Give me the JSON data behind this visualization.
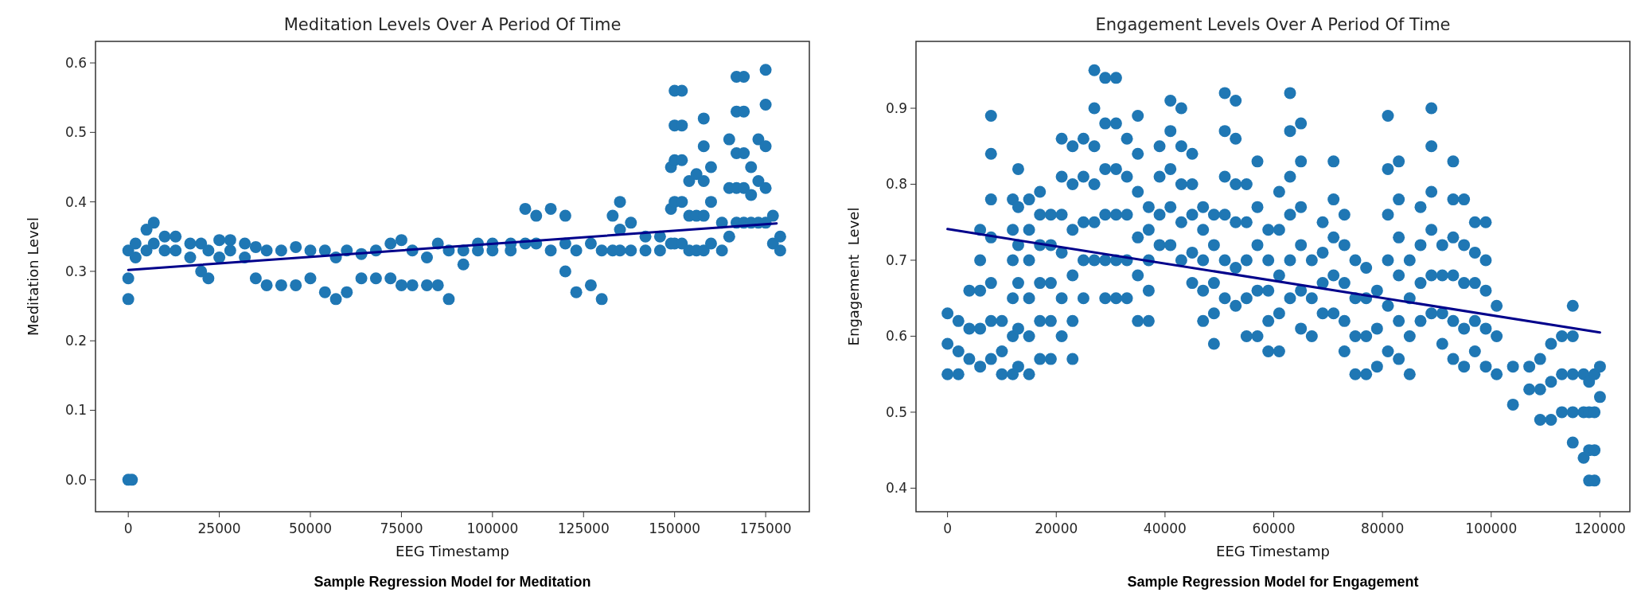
{
  "chart_data": [
    {
      "type": "scatter",
      "title": "Meditation Levels Over A Period Of Time",
      "xlabel": "EEG Timestamp",
      "ylabel": "Meditation Level",
      "annotations": [
        "Sample Regression Model for Meditation"
      ],
      "xlim": [
        -9000,
        187000
      ],
      "xticks": [
        0,
        25000,
        50000,
        75000,
        100000,
        125000,
        150000,
        175000
      ],
      "ylim": [
        -0.046,
        0.631
      ],
      "yticks": [
        {
          "value": 0,
          "label": "0.0"
        },
        0.1,
        0.2,
        0.3,
        0.4,
        0.5,
        0.6
      ],
      "series": [
        {
          "marker": "circle",
          "color": "#1f77b4",
          "x": [
            0,
            0,
            0,
            0,
            1000,
            2000,
            2000,
            5000,
            5000,
            7000,
            7000,
            10000,
            10000,
            13000,
            13000,
            17000,
            17000,
            20000,
            20000,
            22000,
            22000,
            25000,
            25000,
            28000,
            28000,
            32000,
            32000,
            35000,
            35000,
            38000,
            38000,
            42000,
            42000,
            46000,
            46000,
            50000,
            50000,
            54000,
            54000,
            57000,
            57000,
            60000,
            60000,
            64000,
            64000,
            68000,
            68000,
            72000,
            72000,
            75000,
            75000,
            78000,
            78000,
            82000,
            82000,
            85000,
            85000,
            88000,
            88000,
            92000,
            92000,
            96000,
            96000,
            100000,
            100000,
            105000,
            105000,
            109000,
            109000,
            112000,
            112000,
            116000,
            116000,
            120000,
            120000,
            120000,
            123000,
            123000,
            127000,
            127000,
            130000,
            130000,
            133000,
            133000,
            135000,
            135000,
            135000,
            138000,
            138000,
            142000,
            142000,
            146000,
            146000,
            149000,
            149000,
            149000,
            150000,
            150000,
            150000,
            150000,
            150000,
            152000,
            152000,
            152000,
            152000,
            152000,
            154000,
            154000,
            154000,
            156000,
            156000,
            156000,
            158000,
            158000,
            158000,
            158000,
            158000,
            160000,
            160000,
            160000,
            163000,
            163000,
            165000,
            165000,
            165000,
            167000,
            167000,
            167000,
            167000,
            167000,
            169000,
            169000,
            169000,
            169000,
            169000,
            171000,
            171000,
            171000,
            173000,
            173000,
            173000,
            175000,
            175000,
            175000,
            175000,
            175000,
            177000,
            177000,
            179000,
            179000
          ],
          "values": [
            0.26,
            0.29,
            0.33,
            0.0,
            0.0,
            0.32,
            0.34,
            0.33,
            0.36,
            0.34,
            0.37,
            0.33,
            0.35,
            0.33,
            0.35,
            0.32,
            0.34,
            0.3,
            0.34,
            0.29,
            0.33,
            0.32,
            0.345,
            0.33,
            0.345,
            0.32,
            0.34,
            0.29,
            0.335,
            0.28,
            0.33,
            0.28,
            0.33,
            0.28,
            0.335,
            0.29,
            0.33,
            0.27,
            0.33,
            0.26,
            0.32,
            0.27,
            0.33,
            0.29,
            0.325,
            0.29,
            0.33,
            0.29,
            0.34,
            0.28,
            0.345,
            0.28,
            0.33,
            0.28,
            0.32,
            0.28,
            0.34,
            0.26,
            0.33,
            0.31,
            0.33,
            0.33,
            0.34,
            0.33,
            0.34,
            0.33,
            0.34,
            0.34,
            0.39,
            0.34,
            0.38,
            0.33,
            0.39,
            0.3,
            0.34,
            0.38,
            0.27,
            0.33,
            0.28,
            0.34,
            0.26,
            0.33,
            0.33,
            0.38,
            0.33,
            0.36,
            0.4,
            0.33,
            0.37,
            0.33,
            0.35,
            0.33,
            0.35,
            0.34,
            0.39,
            0.45,
            0.34,
            0.4,
            0.46,
            0.51,
            0.56,
            0.34,
            0.4,
            0.46,
            0.51,
            0.56,
            0.33,
            0.38,
            0.43,
            0.33,
            0.38,
            0.44,
            0.33,
            0.38,
            0.43,
            0.48,
            0.52,
            0.34,
            0.4,
            0.45,
            0.33,
            0.37,
            0.35,
            0.42,
            0.49,
            0.37,
            0.42,
            0.47,
            0.53,
            0.58,
            0.37,
            0.42,
            0.47,
            0.53,
            0.58,
            0.37,
            0.41,
            0.45,
            0.37,
            0.43,
            0.49,
            0.37,
            0.42,
            0.48,
            0.54,
            0.59,
            0.34,
            0.38,
            0.33,
            0.35
          ]
        },
        {
          "type": "line",
          "color": "#00008b",
          "x": [
            0,
            178000
          ],
          "values": [
            0.302,
            0.369
          ]
        }
      ]
    },
    {
      "type": "scatter",
      "title": "Engagement Levels Over A Period Of Time",
      "xlabel": "EEG Timestamp",
      "ylabel": "Engagement  Level",
      "annotations": [
        "Sample Regression Model for Engagement"
      ],
      "xlim": [
        -5800,
        125500
      ],
      "xticks": [
        0,
        20000,
        40000,
        60000,
        80000,
        100000,
        120000
      ],
      "ylim": [
        0.369,
        0.988
      ],
      "yticks": [
        0.4,
        0.5,
        0.6,
        0.7,
        0.8,
        0.9
      ],
      "series": [
        {
          "marker": "circle",
          "color": "#1f77b4",
          "x": [
            0,
            0,
            0,
            2000,
            2000,
            2000,
            4000,
            4000,
            4000,
            6000,
            6000,
            6000,
            6000,
            6000,
            8000,
            8000,
            8000,
            8000,
            8000,
            8000,
            8000,
            10000,
            10000,
            10000,
            12000,
            12000,
            12000,
            12000,
            12000,
            12000,
            13000,
            13000,
            13000,
            13000,
            13000,
            13000,
            15000,
            15000,
            15000,
            15000,
            15000,
            15000,
            17000,
            17000,
            17000,
            17000,
            17000,
            17000,
            19000,
            19000,
            19000,
            19000,
            19000,
            21000,
            21000,
            21000,
            21000,
            21000,
            21000,
            23000,
            23000,
            23000,
            23000,
            23000,
            23000,
            25000,
            25000,
            25000,
            25000,
            25000,
            27000,
            27000,
            27000,
            27000,
            27000,
            27000,
            29000,
            29000,
            29000,
            29000,
            29000,
            29000,
            31000,
            31000,
            31000,
            31000,
            31000,
            31000,
            33000,
            33000,
            33000,
            33000,
            33000,
            35000,
            35000,
            35000,
            35000,
            35000,
            35000,
            37000,
            37000,
            37000,
            37000,
            37000,
            39000,
            39000,
            39000,
            39000,
            41000,
            41000,
            41000,
            41000,
            41000,
            43000,
            43000,
            43000,
            43000,
            43000,
            45000,
            45000,
            45000,
            45000,
            45000,
            47000,
            47000,
            47000,
            47000,
            47000,
            49000,
            49000,
            49000,
            49000,
            49000,
            51000,
            51000,
            51000,
            51000,
            51000,
            51000,
            53000,
            53000,
            53000,
            53000,
            53000,
            53000,
            55000,
            55000,
            55000,
            55000,
            55000,
            57000,
            57000,
            57000,
            57000,
            57000,
            59000,
            59000,
            59000,
            59000,
            59000,
            61000,
            61000,
            61000,
            61000,
            61000,
            63000,
            63000,
            63000,
            63000,
            63000,
            63000,
            65000,
            65000,
            65000,
            65000,
            65000,
            65000,
            67000,
            67000,
            67000,
            69000,
            69000,
            69000,
            69000,
            71000,
            71000,
            71000,
            71000,
            71000,
            73000,
            73000,
            73000,
            73000,
            73000,
            75000,
            75000,
            75000,
            75000,
            77000,
            77000,
            77000,
            77000,
            79000,
            79000,
            79000,
            81000,
            81000,
            81000,
            81000,
            81000,
            81000,
            83000,
            83000,
            83000,
            83000,
            83000,
            83000,
            85000,
            85000,
            85000,
            85000,
            87000,
            87000,
            87000,
            87000,
            89000,
            89000,
            89000,
            89000,
            89000,
            89000,
            91000,
            91000,
            91000,
            91000,
            93000,
            93000,
            93000,
            93000,
            93000,
            93000,
            95000,
            95000,
            95000,
            95000,
            95000,
            97000,
            97000,
            97000,
            97000,
            97000,
            99000,
            99000,
            99000,
            99000,
            99000,
            101000,
            101000,
            101000,
            104000,
            104000,
            107000,
            107000,
            109000,
            109000,
            109000,
            111000,
            111000,
            111000,
            113000,
            113000,
            113000,
            115000,
            115000,
            115000,
            115000,
            115000,
            117000,
            117000,
            117000,
            118000,
            118000,
            118000,
            118000,
            119000,
            119000,
            119000,
            119000,
            120000,
            120000
          ],
          "values": [
            0.55,
            0.59,
            0.63,
            0.55,
            0.58,
            0.62,
            0.57,
            0.61,
            0.66,
            0.56,
            0.61,
            0.66,
            0.7,
            0.74,
            0.57,
            0.62,
            0.67,
            0.73,
            0.78,
            0.84,
            0.89,
            0.55,
            0.58,
            0.62,
            0.55,
            0.6,
            0.65,
            0.7,
            0.74,
            0.78,
            0.56,
            0.61,
            0.67,
            0.72,
            0.77,
            0.82,
            0.55,
            0.6,
            0.65,
            0.7,
            0.74,
            0.78,
            0.57,
            0.62,
            0.67,
            0.72,
            0.76,
            0.79,
            0.57,
            0.62,
            0.67,
            0.72,
            0.76,
            0.6,
            0.65,
            0.71,
            0.76,
            0.81,
            0.86,
            0.57,
            0.62,
            0.68,
            0.74,
            0.8,
            0.85,
            0.65,
            0.7,
            0.75,
            0.81,
            0.86,
            0.7,
            0.75,
            0.8,
            0.85,
            0.9,
            0.95,
            0.65,
            0.7,
            0.76,
            0.82,
            0.88,
            0.94,
            0.65,
            0.7,
            0.76,
            0.82,
            0.88,
            0.94,
            0.65,
            0.7,
            0.76,
            0.81,
            0.86,
            0.62,
            0.68,
            0.73,
            0.79,
            0.84,
            0.89,
            0.62,
            0.66,
            0.7,
            0.74,
            0.77,
            0.72,
            0.76,
            0.81,
            0.85,
            0.72,
            0.77,
            0.82,
            0.87,
            0.91,
            0.7,
            0.75,
            0.8,
            0.85,
            0.9,
            0.67,
            0.71,
            0.76,
            0.8,
            0.84,
            0.62,
            0.66,
            0.7,
            0.74,
            0.77,
            0.59,
            0.63,
            0.67,
            0.72,
            0.76,
            0.65,
            0.7,
            0.76,
            0.81,
            0.87,
            0.92,
            0.64,
            0.69,
            0.75,
            0.8,
            0.86,
            0.91,
            0.6,
            0.65,
            0.7,
            0.75,
            0.8,
            0.6,
            0.66,
            0.72,
            0.77,
            0.83,
            0.58,
            0.62,
            0.66,
            0.7,
            0.74,
            0.58,
            0.63,
            0.68,
            0.74,
            0.79,
            0.65,
            0.7,
            0.76,
            0.81,
            0.87,
            0.92,
            0.61,
            0.66,
            0.72,
            0.77,
            0.83,
            0.88,
            0.6,
            0.65,
            0.7,
            0.63,
            0.67,
            0.71,
            0.75,
            0.63,
            0.68,
            0.73,
            0.78,
            0.83,
            0.58,
            0.62,
            0.67,
            0.72,
            0.76,
            0.55,
            0.6,
            0.65,
            0.7,
            0.55,
            0.6,
            0.65,
            0.69,
            0.56,
            0.61,
            0.66,
            0.58,
            0.64,
            0.7,
            0.76,
            0.82,
            0.89,
            0.57,
            0.62,
            0.68,
            0.73,
            0.78,
            0.83,
            0.55,
            0.6,
            0.65,
            0.7,
            0.62,
            0.67,
            0.72,
            0.77,
            0.63,
            0.68,
            0.74,
            0.79,
            0.85,
            0.9,
            0.59,
            0.63,
            0.68,
            0.72,
            0.57,
            0.62,
            0.68,
            0.73,
            0.78,
            0.83,
            0.56,
            0.61,
            0.67,
            0.72,
            0.78,
            0.58,
            0.62,
            0.67,
            0.71,
            0.75,
            0.56,
            0.61,
            0.66,
            0.7,
            0.75,
            0.55,
            0.6,
            0.64,
            0.51,
            0.56,
            0.53,
            0.56,
            0.49,
            0.53,
            0.57,
            0.49,
            0.54,
            0.59,
            0.5,
            0.55,
            0.6,
            0.46,
            0.5,
            0.55,
            0.6,
            0.64,
            0.44,
            0.5,
            0.55,
            0.41,
            0.45,
            0.5,
            0.54,
            0.41,
            0.45,
            0.5,
            0.55,
            0.52,
            0.56
          ]
        },
        {
          "type": "line",
          "color": "#00008b",
          "x": [
            0,
            120000
          ],
          "values": [
            0.741,
            0.605
          ]
        }
      ]
    }
  ]
}
